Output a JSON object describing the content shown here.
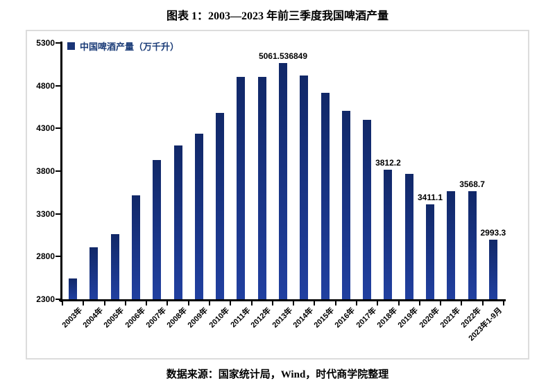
{
  "header": {
    "title": "图表 1：2003—2023 年前三季度我国啤酒产量"
  },
  "legend": {
    "label": "中国啤酒产量（万千升）"
  },
  "footer": {
    "source": "数据来源：国家统计局，Wind，时代商学院整理"
  },
  "colors": {
    "bar_top": "#112868",
    "bar_bottom": "#2140a0",
    "legend_text": "#1b3c78",
    "legend_swatch": "#1a3577",
    "axis": "#000000",
    "frame_border": "#dcdcdc"
  },
  "chart_data": {
    "type": "bar",
    "title": "图表 1：2003—2023 年前三季度我国啤酒产量",
    "legend_entries": [
      "中国啤酒产量（万千升）"
    ],
    "legend_position": "top-left",
    "xlabel": "",
    "ylabel": "",
    "ylim": [
      2300,
      5300
    ],
    "yticks": [
      5300,
      4800,
      4300,
      3800,
      3300,
      2800,
      2300
    ],
    "grid": false,
    "categories": [
      "2003年",
      "2004年",
      "2005年",
      "2006年",
      "2007年",
      "2008年",
      "2009年",
      "2010年",
      "2011年",
      "2012年",
      "2013年",
      "2014年",
      "2015年",
      "2016年",
      "2017年",
      "2018年",
      "2019年",
      "2020年",
      "2021年",
      "2022年",
      "2023年1-9月"
    ],
    "values": [
      2540,
      2910,
      3062,
      3515,
      3931,
      4103,
      4236,
      4483,
      4899,
      4902,
      5061.536849,
      4922,
      4716,
      4506,
      4402,
      3812.2,
      3765,
      3411.1,
      3562,
      3568.7,
      2993.3
    ],
    "data_labels": [
      {
        "index": 10,
        "text": "5061.536849"
      },
      {
        "index": 15,
        "text": "3812.2"
      },
      {
        "index": 17,
        "text": "3411.1"
      },
      {
        "index": 19,
        "text": "3568.7"
      },
      {
        "index": 20,
        "text": "2993.3"
      }
    ],
    "source_note": "数据来源：国家统计局，Wind，时代商学院整理"
  }
}
